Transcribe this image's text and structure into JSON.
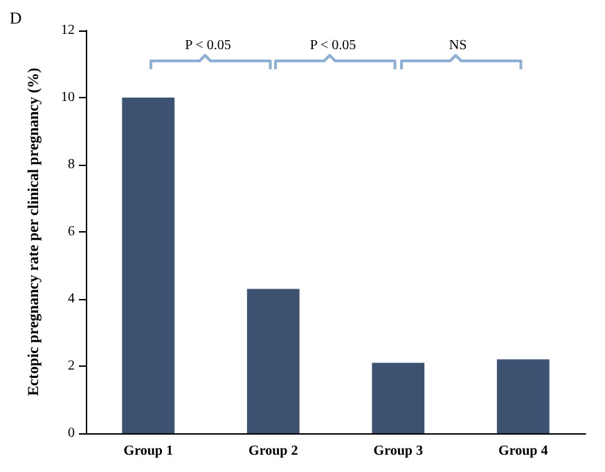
{
  "chart_data": {
    "type": "bar",
    "title": "D",
    "ylabel": "Ectopic pregnancy rate per clinical pregnancy (%)",
    "categories": [
      "Group 1",
      "Group 2",
      "Group 3",
      "Group 4"
    ],
    "values": [
      10,
      4.3,
      2.1,
      2.2
    ],
    "color": "#3d5170",
    "ylim": [
      0,
      12
    ],
    "yticks": [
      0,
      2,
      4,
      6,
      8,
      10,
      12
    ],
    "grid": false,
    "annotations": [
      "P < 0.05",
      "P < 0.05",
      "NS"
    ]
  }
}
